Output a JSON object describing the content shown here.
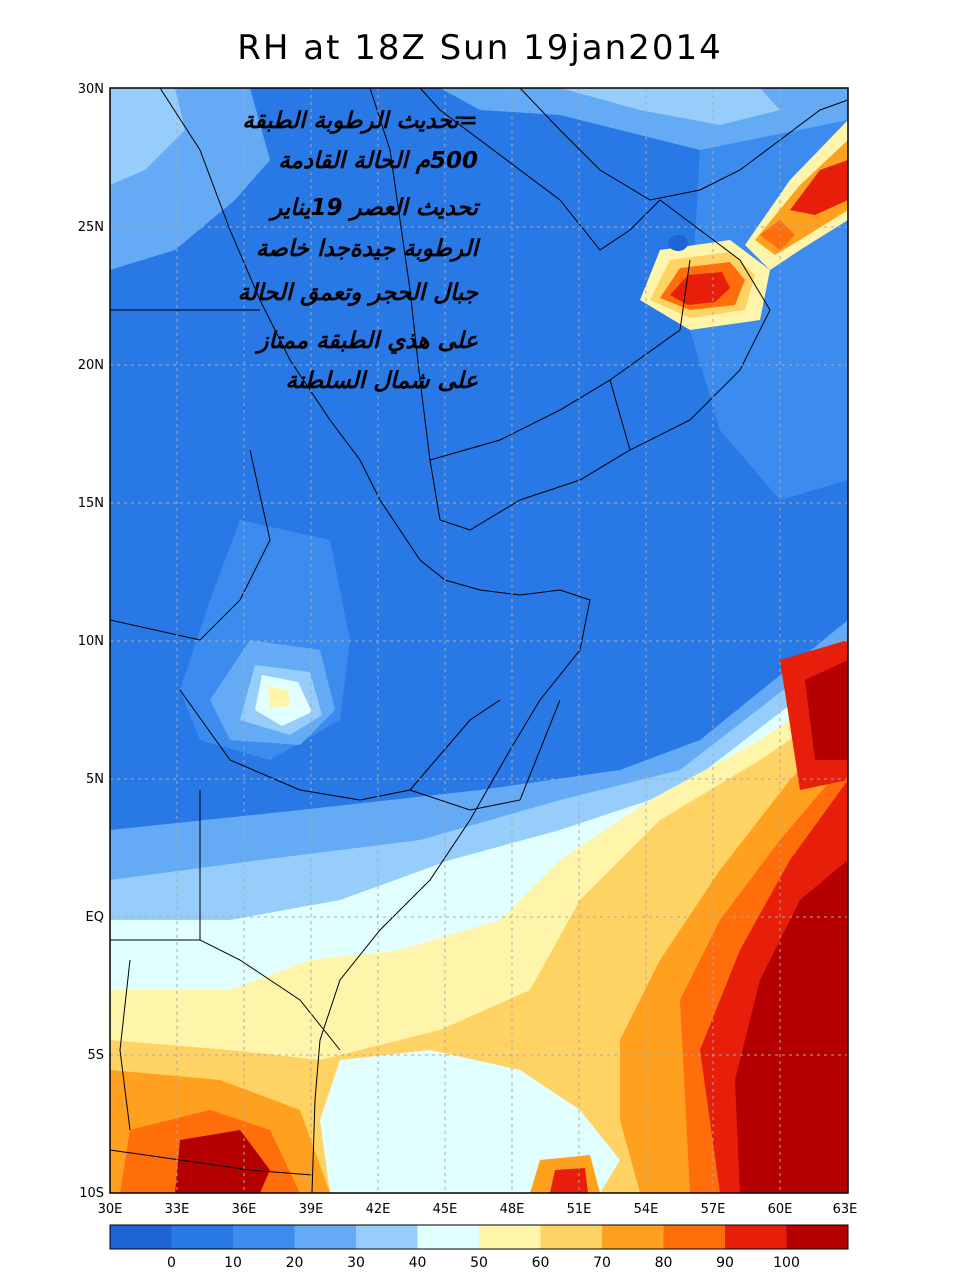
{
  "title": "RH at 18Z Sun 19jan2014",
  "lat_ticks": [
    "30N",
    "25N",
    "20N",
    "15N",
    "10N",
    "5N",
    "EQ",
    "5S",
    "10S"
  ],
  "lon_ticks": [
    "30E",
    "33E",
    "36E",
    "39E",
    "42E",
    "45E",
    "48E",
    "51E",
    "54E",
    "57E",
    "60E",
    "63E"
  ],
  "annotation_lines": [
    "=تحديث الرطوبة الطبقة",
    "500م الحالة القادمة",
    "تحديث العصر 19يناير",
    "الرطوبة جيدةجدا خاصة",
    "جبال الحجر وتعمق الحالة",
    "على هذي الطبقة ممتاز",
    "على شمال السلطنة"
  ],
  "colorbar": {
    "labels": [
      "0",
      "10",
      "20",
      "30",
      "40",
      "50",
      "60",
      "70",
      "80",
      "90",
      "100"
    ],
    "colors": [
      "#1e64d2",
      "#2878e6",
      "#3c8cf0",
      "#64aaf5",
      "#96cdfa",
      "#e1ffff",
      "#fff5aa",
      "#ffd264",
      "#ffa01e",
      "#ff6e0a",
      "#e61e0a",
      "#b40000"
    ]
  }
}
